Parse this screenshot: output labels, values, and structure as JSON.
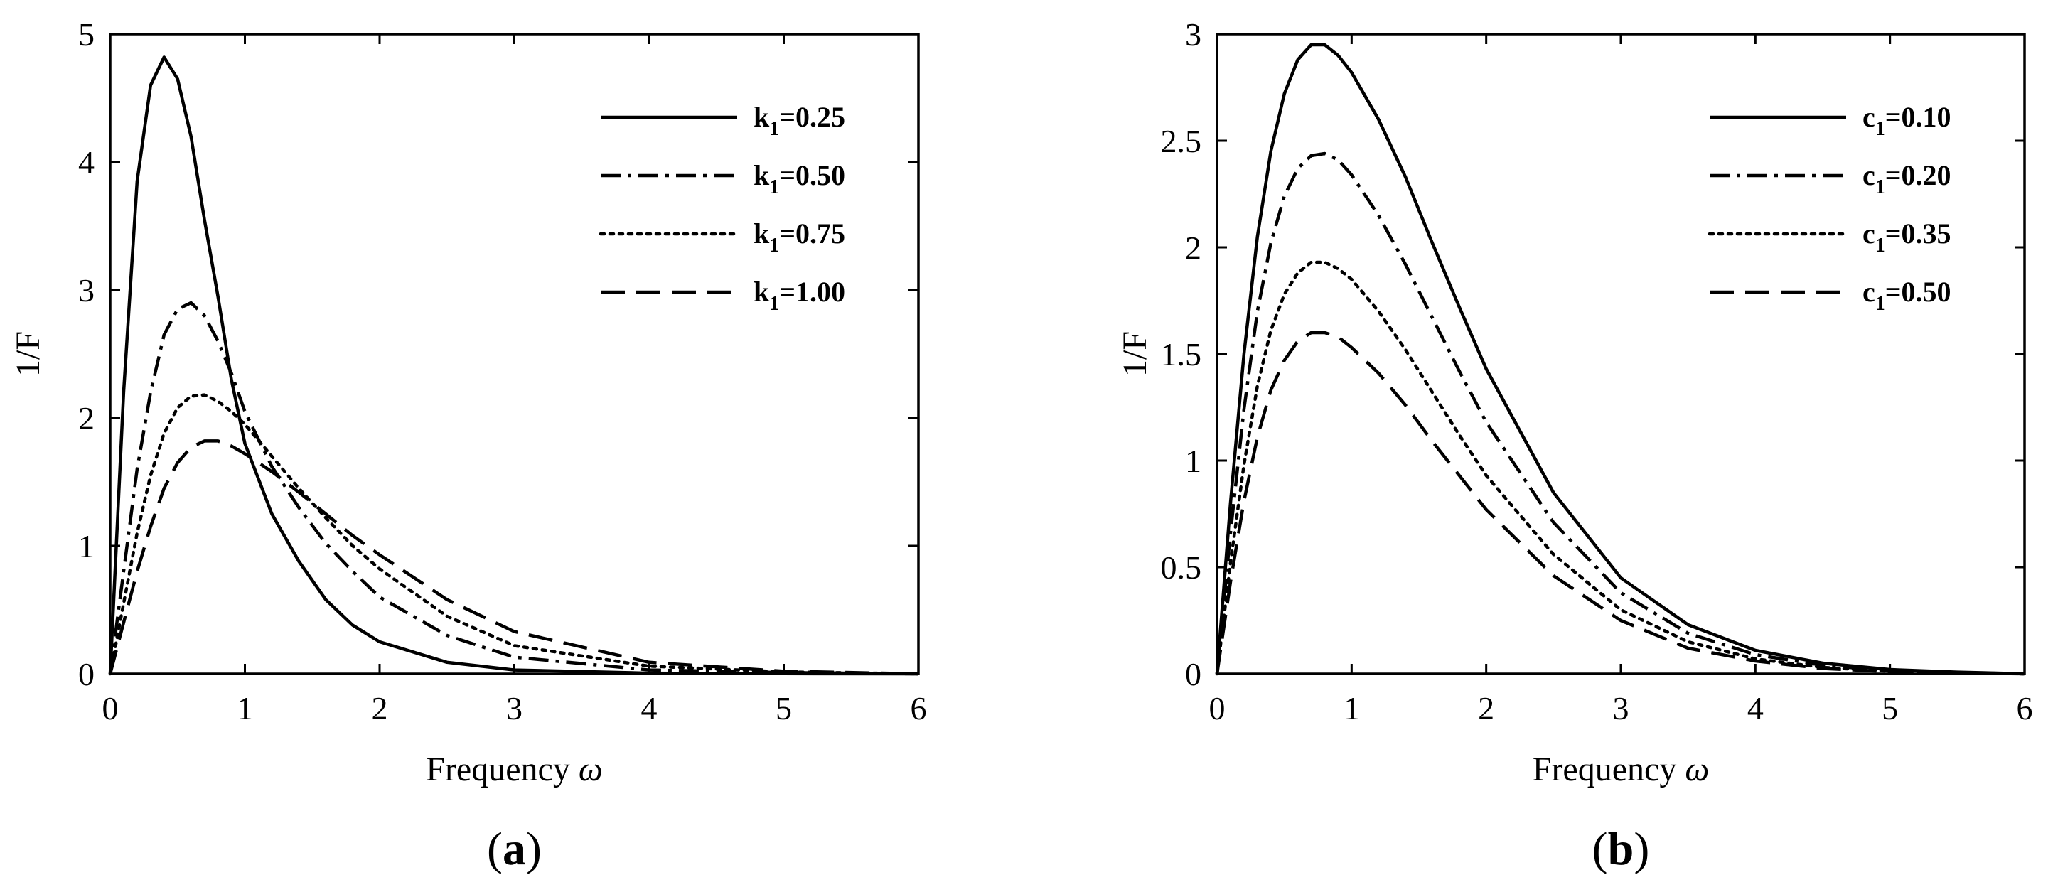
{
  "chart_data": [
    {
      "type": "line",
      "panel_label": "a",
      "xlabel": "Frequency",
      "xlabel_symbol": "ω",
      "ylabel": "1/F",
      "xlim": [
        0,
        6
      ],
      "ylim": [
        0,
        5
      ],
      "xticks": [
        0,
        1,
        2,
        3,
        4,
        5,
        6
      ],
      "yticks": [
        0,
        1,
        2,
        3,
        4,
        5
      ],
      "grid": false,
      "legend_position": "top-right",
      "color": "#000000",
      "series": [
        {
          "name": "k1=0.25",
          "label_main": "k",
          "label_sub": "1",
          "label_value": "=0.25",
          "style": "solid",
          "x": [
            0,
            0.1,
            0.2,
            0.3,
            0.4,
            0.5,
            0.6,
            0.7,
            0.8,
            0.9,
            1.0,
            1.2,
            1.4,
            1.6,
            1.8,
            2.0,
            2.5,
            3.0,
            4.0,
            5.0,
            6.0
          ],
          "y": [
            0,
            2.2,
            3.85,
            4.6,
            4.82,
            4.65,
            4.2,
            3.55,
            2.95,
            2.3,
            1.8,
            1.25,
            0.88,
            0.58,
            0.38,
            0.25,
            0.09,
            0.03,
            0.005,
            0.001,
            0
          ]
        },
        {
          "name": "k1=0.50",
          "label_main": "k",
          "label_sub": "1",
          "label_value": "=0.50",
          "style": "dashdot",
          "x": [
            0,
            0.1,
            0.2,
            0.3,
            0.4,
            0.5,
            0.6,
            0.7,
            0.8,
            0.9,
            1.0,
            1.2,
            1.4,
            1.6,
            1.8,
            2.0,
            2.5,
            3.0,
            4.0,
            5.0,
            6.0
          ],
          "y": [
            0,
            0.8,
            1.6,
            2.2,
            2.65,
            2.85,
            2.9,
            2.8,
            2.6,
            2.35,
            2.05,
            1.62,
            1.3,
            1.02,
            0.8,
            0.6,
            0.3,
            0.13,
            0.03,
            0.01,
            0
          ]
        },
        {
          "name": "k1=0.75",
          "label_main": "k",
          "label_sub": "1",
          "label_value": "=0.75",
          "style": "dotted",
          "x": [
            0,
            0.1,
            0.2,
            0.3,
            0.4,
            0.5,
            0.6,
            0.7,
            0.8,
            0.9,
            1.0,
            1.2,
            1.4,
            1.6,
            1.8,
            2.0,
            2.5,
            3.0,
            4.0,
            5.0,
            6.0
          ],
          "y": [
            0,
            0.55,
            1.1,
            1.55,
            1.88,
            2.08,
            2.17,
            2.18,
            2.13,
            2.05,
            1.95,
            1.7,
            1.45,
            1.22,
            1.0,
            0.82,
            0.45,
            0.22,
            0.06,
            0.015,
            0
          ]
        },
        {
          "name": "k1=1.00",
          "label_main": "k",
          "label_sub": "1",
          "label_value": "=1.00",
          "style": "dashed",
          "x": [
            0,
            0.1,
            0.2,
            0.3,
            0.4,
            0.5,
            0.6,
            0.7,
            0.8,
            0.9,
            1.0,
            1.2,
            1.4,
            1.6,
            1.8,
            2.0,
            2.5,
            3.0,
            4.0,
            5.0,
            6.0
          ],
          "y": [
            0,
            0.4,
            0.8,
            1.15,
            1.45,
            1.65,
            1.77,
            1.82,
            1.82,
            1.78,
            1.72,
            1.58,
            1.42,
            1.25,
            1.08,
            0.93,
            0.58,
            0.33,
            0.09,
            0.02,
            0
          ]
        }
      ]
    },
    {
      "type": "line",
      "panel_label": "b",
      "xlabel": "Frequency",
      "xlabel_symbol": "ω",
      "ylabel": "1/F",
      "xlim": [
        0,
        6
      ],
      "ylim": [
        0,
        3
      ],
      "xticks": [
        0,
        1,
        2,
        3,
        4,
        5,
        6
      ],
      "yticks": [
        0,
        0.5,
        1,
        1.5,
        2,
        2.5,
        3
      ],
      "grid": false,
      "legend_position": "top-right",
      "color": "#000000",
      "series": [
        {
          "name": "c1=0.10",
          "label_main": "c",
          "label_sub": "1",
          "label_value": "=0.10",
          "style": "solid",
          "x": [
            0,
            0.1,
            0.2,
            0.3,
            0.4,
            0.5,
            0.6,
            0.7,
            0.8,
            0.9,
            1.0,
            1.2,
            1.4,
            1.6,
            1.8,
            2.0,
            2.5,
            3.0,
            3.5,
            4.0,
            4.5,
            5.0,
            5.5,
            6.0
          ],
          "y": [
            0,
            0.8,
            1.5,
            2.05,
            2.45,
            2.72,
            2.88,
            2.95,
            2.95,
            2.9,
            2.82,
            2.6,
            2.33,
            2.02,
            1.72,
            1.43,
            0.85,
            0.45,
            0.23,
            0.11,
            0.05,
            0.02,
            0.008,
            0
          ]
        },
        {
          "name": "c1=0.20",
          "label_main": "c",
          "label_sub": "1",
          "label_value": "=0.20",
          "style": "dashdot",
          "x": [
            0,
            0.1,
            0.2,
            0.3,
            0.4,
            0.5,
            0.6,
            0.7,
            0.8,
            0.9,
            1.0,
            1.2,
            1.4,
            1.6,
            1.8,
            2.0,
            2.5,
            3.0,
            3.5,
            4.0,
            4.5,
            5.0,
            5.5,
            6.0
          ],
          "y": [
            0,
            0.66,
            1.24,
            1.7,
            2.02,
            2.24,
            2.37,
            2.43,
            2.44,
            2.41,
            2.34,
            2.15,
            1.92,
            1.67,
            1.42,
            1.18,
            0.71,
            0.38,
            0.19,
            0.09,
            0.04,
            0.015,
            0.006,
            0
          ]
        },
        {
          "name": "c1=0.35",
          "label_main": "c",
          "label_sub": "1",
          "label_value": "=0.35",
          "style": "dotted",
          "x": [
            0,
            0.1,
            0.2,
            0.3,
            0.4,
            0.5,
            0.6,
            0.7,
            0.8,
            0.9,
            1.0,
            1.2,
            1.4,
            1.6,
            1.8,
            2.0,
            2.5,
            3.0,
            3.5,
            4.0,
            4.5,
            5.0,
            5.5,
            6.0
          ],
          "y": [
            0,
            0.52,
            0.98,
            1.35,
            1.61,
            1.78,
            1.88,
            1.93,
            1.93,
            1.9,
            1.85,
            1.7,
            1.52,
            1.32,
            1.12,
            0.93,
            0.56,
            0.3,
            0.15,
            0.07,
            0.03,
            0.012,
            0.005,
            0
          ]
        },
        {
          "name": "c1=0.50",
          "label_main": "c",
          "label_sub": "1",
          "label_value": "=0.50",
          "style": "dashed",
          "x": [
            0,
            0.1,
            0.2,
            0.3,
            0.4,
            0.5,
            0.6,
            0.7,
            0.8,
            0.9,
            1.0,
            1.2,
            1.4,
            1.6,
            1.8,
            2.0,
            2.5,
            3.0,
            3.5,
            4.0,
            4.5,
            5.0,
            5.5,
            6.0
          ],
          "y": [
            0,
            0.43,
            0.81,
            1.11,
            1.33,
            1.47,
            1.56,
            1.6,
            1.6,
            1.58,
            1.53,
            1.41,
            1.26,
            1.09,
            0.93,
            0.77,
            0.46,
            0.25,
            0.12,
            0.06,
            0.025,
            0.01,
            0.004,
            0
          ]
        }
      ]
    }
  ]
}
